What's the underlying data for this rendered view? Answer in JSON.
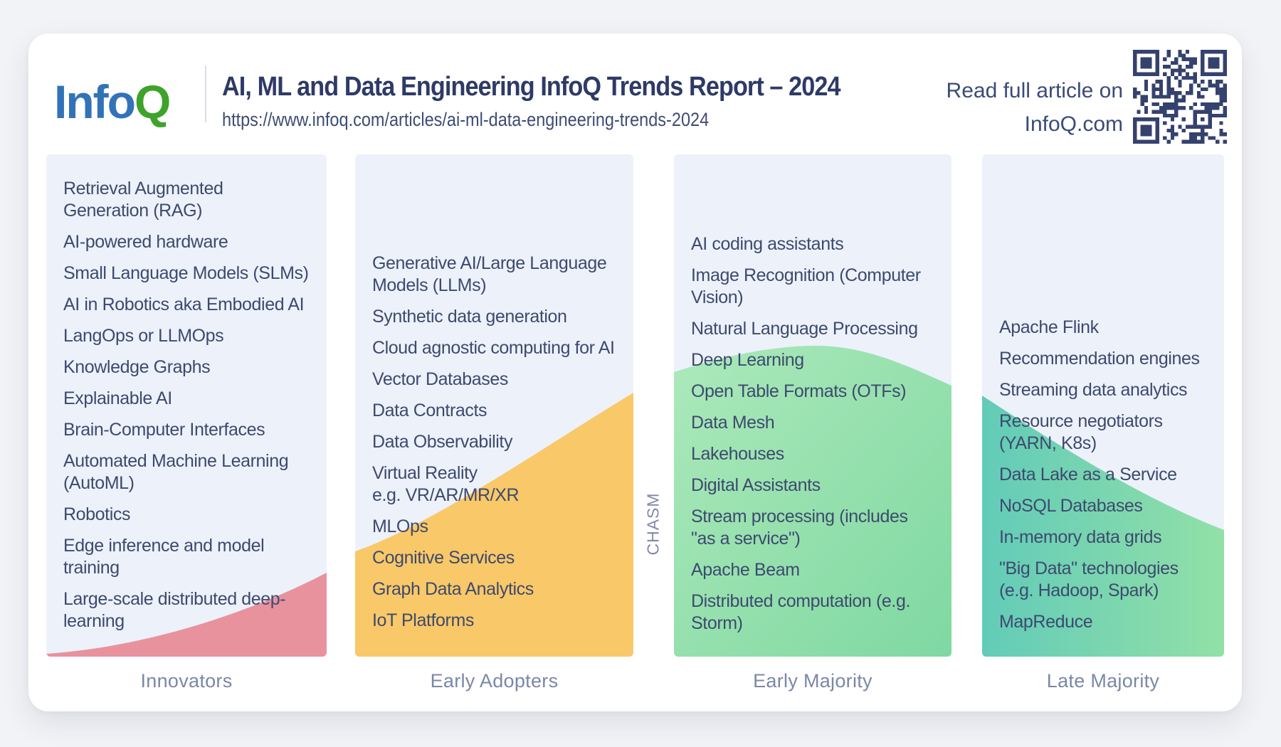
{
  "header": {
    "logo_part1": "Info",
    "logo_part2": "Q",
    "title": "AI, ML and Data Engineering InfoQ Trends Report – 2024",
    "url": "https://www.infoq.com/articles/ai-ml-data-engineering-trends-2024",
    "read_cta_line1": "Read full article on",
    "read_cta_line2": "InfoQ.com"
  },
  "chasm": {
    "label": "CHASM"
  },
  "adoption_curve": {
    "columns": [
      {
        "label": "Innovators",
        "wave_color": "#E8929E",
        "items": [
          "Retrieval Augmented\nGeneration (RAG)",
          "AI-powered hardware",
          "Small Language Models (SLMs)",
          "AI in Robotics aka Embodied AI",
          "LangOps or LLMOps",
          "Knowledge Graphs",
          "Explainable AI",
          "Brain-Computer Interfaces",
          "Automated Machine Learning\n(AutoML)",
          "Robotics",
          "Edge inference and model\ntraining",
          "Large-scale distributed deep-\nlearning"
        ]
      },
      {
        "label": "Early Adopters",
        "wave_color": "#F9C868",
        "items": [
          "Generative AI/Large Language\nModels (LLMs)",
          "Synthetic data generation",
          "Cloud agnostic computing for AI",
          "Vector Databases",
          "Data Contracts",
          "Data Observability",
          "Virtual Reality\ne.g. VR/AR/MR/XR",
          "MLOps",
          "Cognitive Services",
          "Graph Data Analytics",
          "IoT Platforms"
        ]
      },
      {
        "label": "Early Majority",
        "wave_from": "#ACE9BB",
        "wave_to": "#7FD8A1",
        "items": [
          "AI coding assistants",
          "Image Recognition (Computer\nVision)",
          "Natural Language Processing",
          "Deep Learning",
          "Open Table Formats (OTFs)",
          "Data Mesh",
          "Lakehouses",
          "Digital Assistants",
          "Stream processing (includes\n\"as a service\")",
          "Apache Beam",
          "Distributed computation (e.g.\nStorm)"
        ]
      },
      {
        "label": "Late Majority",
        "wave_from": "#62CBB8",
        "wave_to": "#92E0A7",
        "items": [
          "Apache Flink",
          "Recommendation engines",
          "Streaming data analytics",
          "Resource negotiators\n(YARN, K8s)",
          "Data Lake as a Service",
          "NoSQL Databases",
          "In-memory data grids",
          "\"Big Data\" technologies\n(e.g. Hadoop, Spark)",
          "MapReduce"
        ]
      }
    ]
  },
  "colors": {
    "item_text": "#3D4A6E",
    "title_text": "#2E3A66",
    "label_text": "#7B87A6",
    "chasm_text": "#8089A8",
    "logo_blue": "#3273B8",
    "logo_green": "#3EA32A",
    "qr_navy": "#35426E",
    "column_bg": "#EDF1FA",
    "card_bg": "#FFFFFF"
  }
}
